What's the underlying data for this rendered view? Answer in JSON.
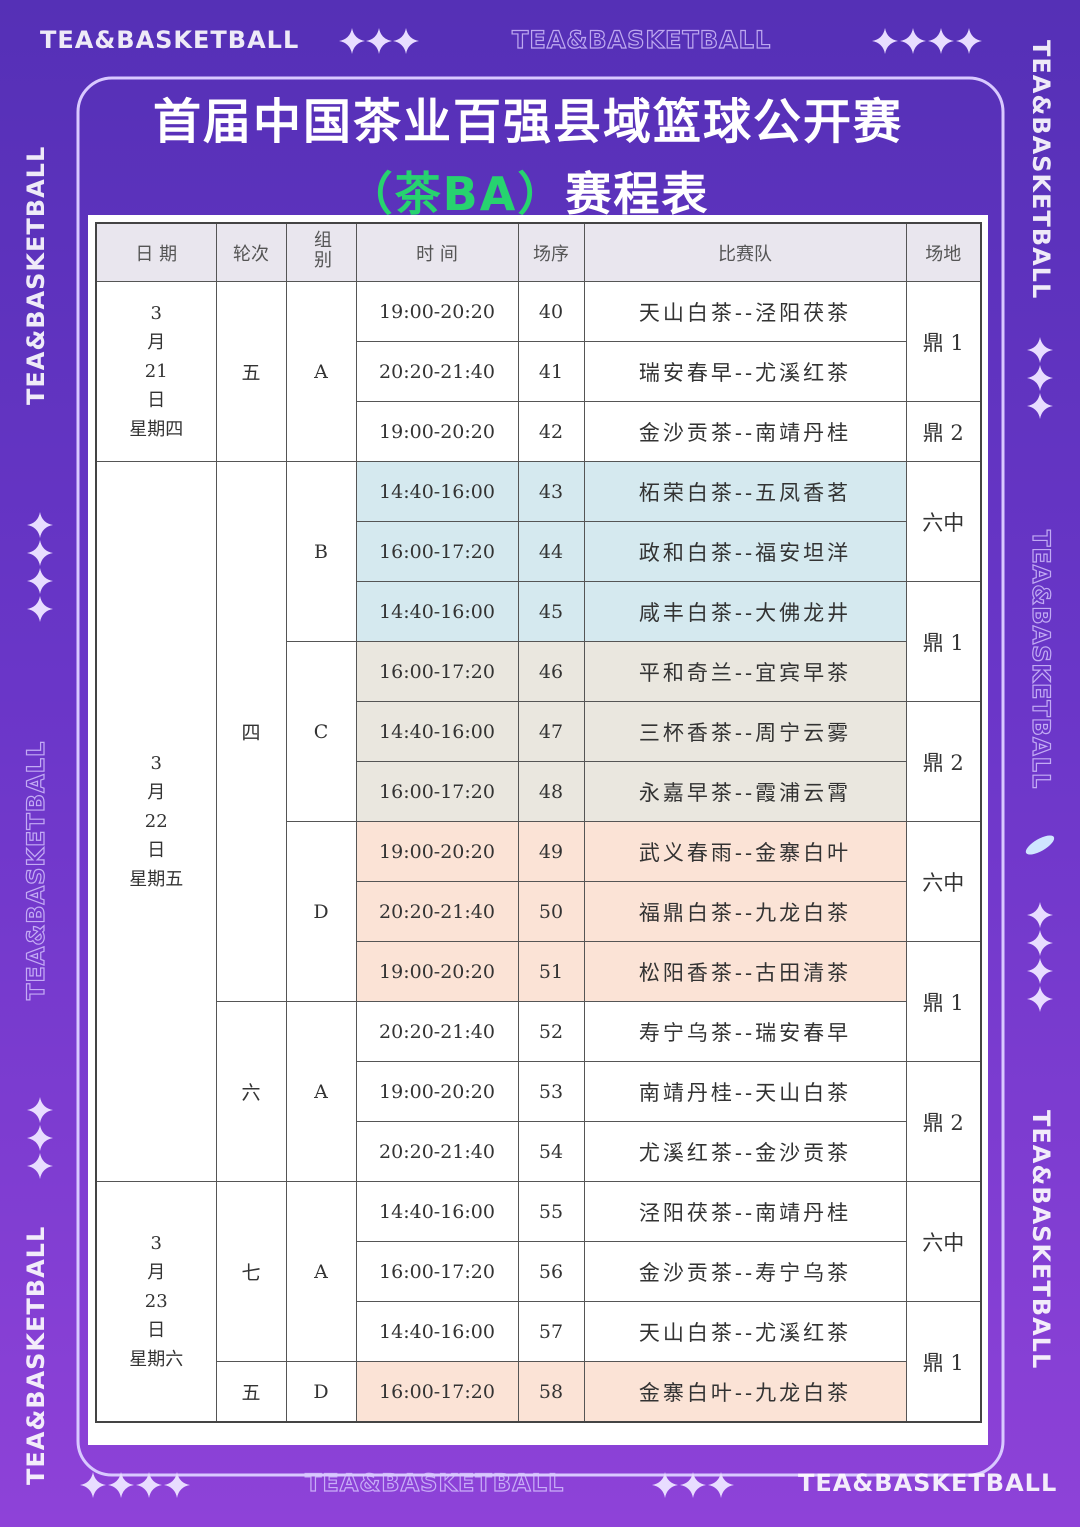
{
  "brand": "TEA&BASKETBALL",
  "header": {
    "title": "首届中国茶业百强县域篮球公开赛",
    "title_tag": "（茶BA）",
    "title_rest": "赛程表"
  },
  "table": {
    "headers": [
      "日 期",
      "轮次",
      "组别",
      "时 间",
      "场序",
      "比赛队",
      "场地"
    ],
    "dates": [
      {
        "lines": [
          "3",
          "月",
          "21",
          "日",
          "星期四"
        ],
        "rounds": [
          {
            "label": "五",
            "groups": [
              {
                "label": "A",
                "matches": [
                  {
                    "time": "19:00-20:20",
                    "no": 40,
                    "teams": "天山白茶--泾阳茯茶"
                  },
                  {
                    "time": "20:20-21:40",
                    "no": 41,
                    "teams": "瑞安春早--尤溪红茶"
                  },
                  {
                    "time": "19:00-20:20",
                    "no": 42,
                    "teams": "金沙贡茶--南靖丹桂"
                  }
                ]
              }
            ]
          }
        ]
      },
      {
        "lines": [
          "3",
          "月",
          "22",
          "日",
          "星期五"
        ],
        "rounds": [
          {
            "label": "四",
            "groups": [
              {
                "label": "B",
                "color": "#d5e9ef",
                "matches": [
                  {
                    "time": "14:40-16:00",
                    "no": 43,
                    "teams": "柘荣白茶--五凤香茗"
                  },
                  {
                    "time": "16:00-17:20",
                    "no": 44,
                    "teams": "政和白茶--福安坦洋"
                  },
                  {
                    "time": "14:40-16:00",
                    "no": 45,
                    "teams": "咸丰白茶--大佛龙井"
                  }
                ]
              },
              {
                "label": "C",
                "color": "#eae7df",
                "matches": [
                  {
                    "time": "16:00-17:20",
                    "no": 46,
                    "teams": "平和奇兰--宜宾早茶"
                  },
                  {
                    "time": "14:40-16:00",
                    "no": 47,
                    "teams": "三杯香茶--周宁云雾"
                  },
                  {
                    "time": "16:00-17:20",
                    "no": 48,
                    "teams": "永嘉早茶--霞浦云霄"
                  }
                ]
              },
              {
                "label": "D",
                "color": "#fbe3d6",
                "matches": [
                  {
                    "time": "19:00-20:20",
                    "no": 49,
                    "teams": "武义春雨--金寨白叶"
                  },
                  {
                    "time": "20:20-21:40",
                    "no": 50,
                    "teams": "福鼎白茶--九龙白茶"
                  },
                  {
                    "time": "19:00-20:20",
                    "no": 51,
                    "teams": "松阳香茶--古田清茶"
                  }
                ]
              }
            ]
          },
          {
            "label": "六",
            "groups": [
              {
                "label": "A",
                "matches": [
                  {
                    "time": "20:20-21:40",
                    "no": 52,
                    "teams": "寿宁乌茶--瑞安春早"
                  },
                  {
                    "time": "19:00-20:20",
                    "no": 53,
                    "teams": "南靖丹桂--天山白茶"
                  },
                  {
                    "time": "20:20-21:40",
                    "no": 54,
                    "teams": "尤溪红茶--金沙贡茶"
                  }
                ]
              }
            ]
          }
        ]
      },
      {
        "lines": [
          "3",
          "月",
          "23",
          "日",
          "星期六"
        ],
        "rounds": [
          {
            "label": "七",
            "groups": [
              {
                "label": "A",
                "matches": [
                  {
                    "time": "14:40-16:00",
                    "no": 55,
                    "teams": "泾阳茯茶--南靖丹桂"
                  },
                  {
                    "time": "16:00-17:20",
                    "no": 56,
                    "teams": "金沙贡茶--寿宁乌茶"
                  },
                  {
                    "time": "14:40-16:00",
                    "no": 57,
                    "teams": "天山白茶--尤溪红茶"
                  }
                ]
              }
            ]
          },
          {
            "label": "五",
            "groups": [
              {
                "label": "D",
                "color": "#fbe3d6",
                "matches": [
                  {
                    "time": "16:00-17:20",
                    "no": 58,
                    "teams": "金寨白叶--九龙白茶"
                  }
                ]
              }
            ]
          }
        ]
      }
    ],
    "venues": [
      {
        "label": "鼎 1",
        "span": 2
      },
      {
        "label": "鼎 2",
        "span": 1
      },
      {
        "label": "六中",
        "span": 2
      },
      {
        "label": "鼎 1",
        "span": 2
      },
      {
        "label": "鼎 2",
        "span": 2
      },
      {
        "label": "六中",
        "span": 2
      },
      {
        "label": "鼎 1",
        "span": 2
      },
      {
        "label": "鼎 2",
        "span": 2
      },
      {
        "label": "六中",
        "span": 2
      },
      {
        "label": "鼎 1",
        "span": 2
      }
    ]
  }
}
